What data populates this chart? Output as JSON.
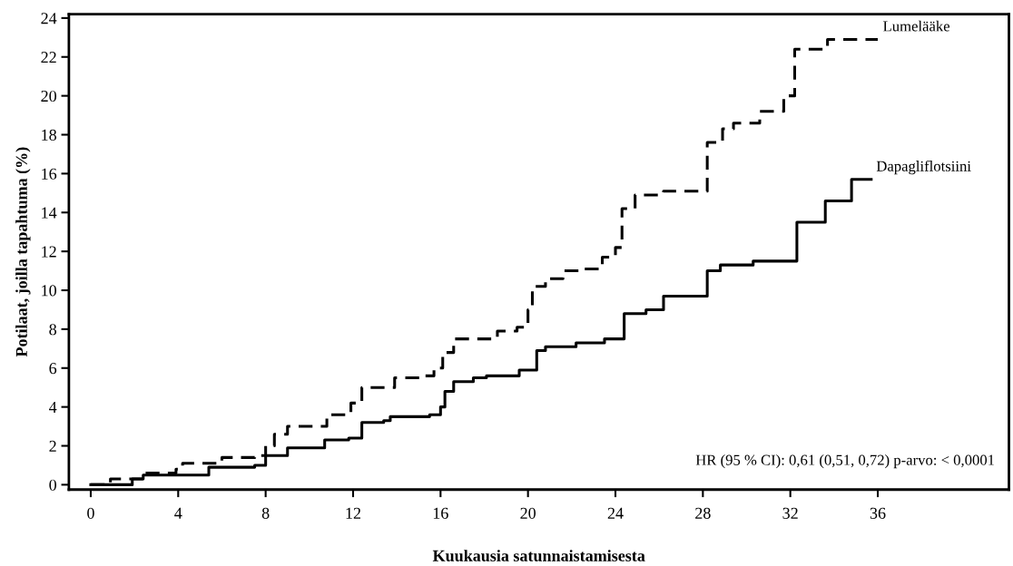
{
  "chart_data": {
    "type": "step",
    "xlabel": "Kuukausia satunnaistamisesta",
    "ylabel": "Potilaat, joilla tapahtuma (%)",
    "xlim": [
      -1,
      42
    ],
    "ylim": [
      -0.25,
      24.2
    ],
    "xticks": [
      0,
      4,
      8,
      12,
      16,
      20,
      24,
      28,
      32,
      36
    ],
    "yticks": [
      0,
      2,
      4,
      6,
      8,
      10,
      12,
      14,
      16,
      18,
      20,
      22,
      24
    ],
    "grid": false,
    "legend": false,
    "series": [
      {
        "name": "Lumelääke",
        "color": "#000000",
        "line_style": "dashed",
        "x": [
          0,
          0.9,
          2.4,
          3.9,
          4.2,
          6.0,
          7.5,
          8.0,
          8.4,
          9.0,
          10.8,
          11.9,
          12.4,
          13.9,
          15.2,
          15.7,
          16.1,
          16.6,
          18.6,
          19.5,
          20.0,
          20.2,
          20.8,
          21.6,
          22.5,
          23.4,
          24.0,
          24.3,
          24.9,
          26.2,
          27.6,
          28.2,
          28.9,
          29.4,
          30.6,
          31.7,
          32.2,
          33.7,
          36.0
        ],
        "values": [
          0,
          0.3,
          0.6,
          0.8,
          1.1,
          1.4,
          1.5,
          2.0,
          2.6,
          3.0,
          3.6,
          4.2,
          5.0,
          5.5,
          5.6,
          6.0,
          6.8,
          7.5,
          7.9,
          8.1,
          9.0,
          10.2,
          10.6,
          11.0,
          11.1,
          11.7,
          12.2,
          14.2,
          14.9,
          15.1,
          15.1,
          17.6,
          18.3,
          18.6,
          19.2,
          20.0,
          22.4,
          22.9,
          22.9
        ]
      },
      {
        "name": "Dapagliflotsiini",
        "color": "#000000",
        "line_style": "solid",
        "x": [
          0,
          1.9,
          2.4,
          3.9,
          5.4,
          7.5,
          8.0,
          9.0,
          9.8,
          10.7,
          11.8,
          12.4,
          13.4,
          13.7,
          15.5,
          16.0,
          16.2,
          16.6,
          17.5,
          18.1,
          19.6,
          20.4,
          20.8,
          22.2,
          23.5,
          24.4,
          25.4,
          26.2,
          27.6,
          28.2,
          28.8,
          30.3,
          31.7,
          32.3,
          33.6,
          34.8,
          35.7
        ],
        "values": [
          0,
          0.3,
          0.5,
          0.5,
          0.9,
          1.0,
          1.5,
          1.9,
          1.9,
          2.3,
          2.4,
          3.2,
          3.3,
          3.5,
          3.6,
          4.0,
          4.8,
          5.3,
          5.5,
          5.6,
          5.9,
          6.9,
          7.1,
          7.3,
          7.5,
          8.8,
          9.0,
          9.7,
          9.7,
          11.0,
          11.3,
          11.5,
          11.5,
          13.5,
          14.6,
          15.7,
          15.7
        ]
      }
    ],
    "annotations": [
      "HR (95 % CI): 0,61 (0,51, 0,72) p-arvo: < 0,0001"
    ]
  }
}
